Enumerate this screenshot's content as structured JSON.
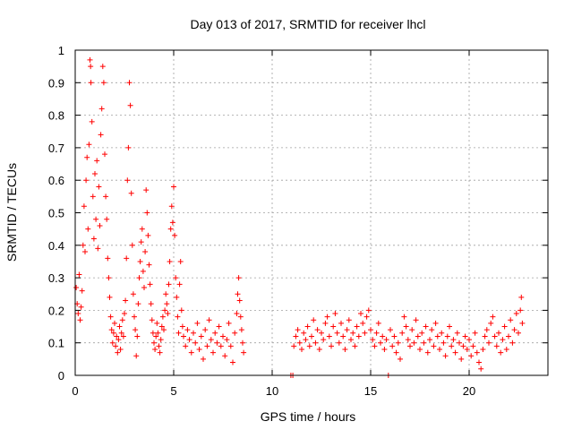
{
  "chart_data": {
    "type": "scatter",
    "title": "Day 013 of 2017, SRMTID for receiver lhcl",
    "xlabel": "GPS time / hours",
    "ylabel": "SRMTID / TECUs",
    "xlim": [
      0,
      24
    ],
    "ylim": [
      0,
      1
    ],
    "xticks": [
      0,
      5,
      10,
      15,
      20
    ],
    "xtick_labels": [
      "0",
      "5",
      "10",
      "15",
      "20"
    ],
    "yticks": [
      0,
      0.1,
      0.2,
      0.3,
      0.4,
      0.5,
      0.6,
      0.7,
      0.8,
      0.9,
      1
    ],
    "ytick_labels": [
      "0",
      "0.1",
      "0.2",
      "0.3",
      "0.4",
      "0.5",
      "0.6",
      "0.7",
      "0.8",
      "0.9",
      "1"
    ],
    "grid": true,
    "marker": "+",
    "color": "#ff0000",
    "series": [
      {
        "name": "SRMTID",
        "points": [
          [
            0.05,
            0.27
          ],
          [
            0.1,
            0.22
          ],
          [
            0.15,
            0.19
          ],
          [
            0.2,
            0.31
          ],
          [
            0.25,
            0.17
          ],
          [
            0.3,
            0.21
          ],
          [
            0.35,
            0.26
          ],
          [
            0.4,
            0.4
          ],
          [
            0.45,
            0.52
          ],
          [
            0.5,
            0.38
          ],
          [
            0.55,
            0.6
          ],
          [
            0.6,
            0.67
          ],
          [
            0.65,
            0.45
          ],
          [
            0.7,
            0.71
          ],
          [
            0.75,
            0.97
          ],
          [
            0.78,
            0.95
          ],
          [
            0.8,
            0.9
          ],
          [
            0.85,
            0.78
          ],
          [
            0.9,
            0.55
          ],
          [
            0.95,
            0.42
          ],
          [
            1.0,
            0.62
          ],
          [
            1.05,
            0.48
          ],
          [
            1.1,
            0.66
          ],
          [
            1.15,
            0.39
          ],
          [
            1.2,
            0.58
          ],
          [
            1.25,
            0.46
          ],
          [
            1.3,
            0.74
          ],
          [
            1.35,
            0.82
          ],
          [
            1.4,
            0.95
          ],
          [
            1.45,
            0.9
          ],
          [
            1.5,
            0.68
          ],
          [
            1.55,
            0.55
          ],
          [
            1.6,
            0.48
          ],
          [
            1.65,
            0.36
          ],
          [
            1.7,
            0.3
          ],
          [
            1.75,
            0.24
          ],
          [
            1.8,
            0.18
          ],
          [
            1.85,
            0.14
          ],
          [
            1.9,
            0.1
          ],
          [
            1.95,
            0.13
          ],
          [
            2.0,
            0.16
          ],
          [
            2.05,
            0.09
          ],
          [
            2.1,
            0.12
          ],
          [
            2.15,
            0.07
          ],
          [
            2.2,
            0.11
          ],
          [
            2.25,
            0.15
          ],
          [
            2.3,
            0.08
          ],
          [
            2.35,
            0.13
          ],
          [
            2.4,
            0.17
          ],
          [
            2.45,
            0.12
          ],
          [
            2.5,
            0.19
          ],
          [
            2.55,
            0.23
          ],
          [
            2.6,
            0.36
          ],
          [
            2.65,
            0.6
          ],
          [
            2.7,
            0.7
          ],
          [
            2.75,
            0.9
          ],
          [
            2.8,
            0.83
          ],
          [
            2.85,
            0.56
          ],
          [
            2.9,
            0.4
          ],
          [
            2.95,
            0.25
          ],
          [
            3.0,
            0.18
          ],
          [
            3.05,
            0.14
          ],
          [
            3.1,
            0.06
          ],
          [
            3.15,
            0.12
          ],
          [
            3.2,
            0.22
          ],
          [
            3.25,
            0.3
          ],
          [
            3.3,
            0.35
          ],
          [
            3.35,
            0.41
          ],
          [
            3.4,
            0.45
          ],
          [
            3.45,
            0.32
          ],
          [
            3.5,
            0.27
          ],
          [
            3.55,
            0.38
          ],
          [
            3.6,
            0.57
          ],
          [
            3.65,
            0.5
          ],
          [
            3.7,
            0.43
          ],
          [
            3.75,
            0.34
          ],
          [
            3.8,
            0.28
          ],
          [
            3.85,
            0.22
          ],
          [
            3.9,
            0.17
          ],
          [
            3.95,
            0.13
          ],
          [
            4.0,
            0.1
          ],
          [
            4.05,
            0.08
          ],
          [
            4.1,
            0.12
          ],
          [
            4.15,
            0.16
          ],
          [
            4.2,
            0.13
          ],
          [
            4.25,
            0.09
          ],
          [
            4.3,
            0.07
          ],
          [
            4.35,
            0.11
          ],
          [
            4.4,
            0.15
          ],
          [
            4.45,
            0.18
          ],
          [
            4.5,
            0.14
          ],
          [
            4.55,
            0.2
          ],
          [
            4.6,
            0.25
          ],
          [
            4.65,
            0.22
          ],
          [
            4.7,
            0.19
          ],
          [
            4.75,
            0.28
          ],
          [
            4.8,
            0.35
          ],
          [
            4.85,
            0.45
          ],
          [
            4.9,
            0.52
          ],
          [
            4.95,
            0.47
          ],
          [
            5.0,
            0.58
          ],
          [
            5.05,
            0.43
          ],
          [
            5.1,
            0.3
          ],
          [
            5.15,
            0.24
          ],
          [
            5.2,
            0.18
          ],
          [
            5.25,
            0.13
          ],
          [
            5.3,
            0.28
          ],
          [
            5.35,
            0.35
          ],
          [
            5.4,
            0.2
          ],
          [
            5.45,
            0.15
          ],
          [
            5.5,
            0.12
          ],
          [
            5.6,
            0.09
          ],
          [
            5.7,
            0.14
          ],
          [
            5.8,
            0.11
          ],
          [
            5.9,
            0.07
          ],
          [
            6.0,
            0.13
          ],
          [
            6.1,
            0.1
          ],
          [
            6.2,
            0.16
          ],
          [
            6.3,
            0.08
          ],
          [
            6.4,
            0.12
          ],
          [
            6.5,
            0.05
          ],
          [
            6.6,
            0.14
          ],
          [
            6.7,
            0.09
          ],
          [
            6.8,
            0.17
          ],
          [
            6.9,
            0.11
          ],
          [
            7.0,
            0.07
          ],
          [
            7.1,
            0.13
          ],
          [
            7.2,
            0.1
          ],
          [
            7.3,
            0.15
          ],
          [
            7.4,
            0.09
          ],
          [
            7.5,
            0.12
          ],
          [
            7.6,
            0.06
          ],
          [
            7.7,
            0.11
          ],
          [
            7.8,
            0.16
          ],
          [
            7.9,
            0.09
          ],
          [
            8.0,
            0.04
          ],
          [
            8.1,
            0.13
          ],
          [
            8.2,
            0.19
          ],
          [
            8.25,
            0.25
          ],
          [
            8.3,
            0.3
          ],
          [
            8.35,
            0.23
          ],
          [
            8.4,
            0.18
          ],
          [
            8.45,
            0.14
          ],
          [
            8.5,
            0.1
          ],
          [
            8.55,
            0.07
          ],
          [
            10.95,
            0.0
          ],
          [
            11.05,
            0.0
          ],
          [
            11.1,
            0.09
          ],
          [
            11.2,
            0.12
          ],
          [
            11.3,
            0.14
          ],
          [
            11.4,
            0.1
          ],
          [
            11.5,
            0.08
          ],
          [
            11.6,
            0.13
          ],
          [
            11.7,
            0.11
          ],
          [
            11.8,
            0.15
          ],
          [
            11.9,
            0.09
          ],
          [
            12.0,
            0.12
          ],
          [
            12.1,
            0.17
          ],
          [
            12.2,
            0.1
          ],
          [
            12.3,
            0.14
          ],
          [
            12.4,
            0.08
          ],
          [
            12.5,
            0.13
          ],
          [
            12.6,
            0.11
          ],
          [
            12.7,
            0.16
          ],
          [
            12.8,
            0.18
          ],
          [
            12.9,
            0.12
          ],
          [
            13.0,
            0.09
          ],
          [
            13.1,
            0.15
          ],
          [
            13.2,
            0.19
          ],
          [
            13.3,
            0.13
          ],
          [
            13.4,
            0.1
          ],
          [
            13.5,
            0.16
          ],
          [
            13.6,
            0.12
          ],
          [
            13.7,
            0.08
          ],
          [
            13.8,
            0.14
          ],
          [
            13.9,
            0.17
          ],
          [
            14.0,
            0.11
          ],
          [
            14.1,
            0.13
          ],
          [
            14.2,
            0.09
          ],
          [
            14.3,
            0.15
          ],
          [
            14.4,
            0.12
          ],
          [
            14.5,
            0.19
          ],
          [
            14.6,
            0.16
          ],
          [
            14.7,
            0.13
          ],
          [
            14.8,
            0.18
          ],
          [
            14.9,
            0.2
          ],
          [
            15.0,
            0.14
          ],
          [
            15.1,
            0.11
          ],
          [
            15.2,
            0.09
          ],
          [
            15.3,
            0.13
          ],
          [
            15.4,
            0.16
          ],
          [
            15.5,
            0.1
          ],
          [
            15.6,
            0.12
          ],
          [
            15.7,
            0.08
          ],
          [
            15.8,
            0.11
          ],
          [
            15.9,
            0.0
          ],
          [
            16.0,
            0.14
          ],
          [
            16.1,
            0.09
          ],
          [
            16.2,
            0.12
          ],
          [
            16.3,
            0.07
          ],
          [
            16.4,
            0.1
          ],
          [
            16.5,
            0.05
          ],
          [
            16.6,
            0.13
          ],
          [
            16.7,
            0.18
          ],
          [
            16.8,
            0.15
          ],
          [
            16.9,
            0.11
          ],
          [
            17.0,
            0.09
          ],
          [
            17.1,
            0.14
          ],
          [
            17.2,
            0.1
          ],
          [
            17.3,
            0.17
          ],
          [
            17.4,
            0.12
          ],
          [
            17.5,
            0.08
          ],
          [
            17.6,
            0.13
          ],
          [
            17.7,
            0.1
          ],
          [
            17.8,
            0.15
          ],
          [
            17.9,
            0.07
          ],
          [
            18.0,
            0.11
          ],
          [
            18.1,
            0.14
          ],
          [
            18.2,
            0.09
          ],
          [
            18.3,
            0.16
          ],
          [
            18.4,
            0.12
          ],
          [
            18.5,
            0.08
          ],
          [
            18.6,
            0.13
          ],
          [
            18.7,
            0.1
          ],
          [
            18.8,
            0.06
          ],
          [
            18.9,
            0.12
          ],
          [
            19.0,
            0.15
          ],
          [
            19.1,
            0.09
          ],
          [
            19.2,
            0.11
          ],
          [
            19.3,
            0.07
          ],
          [
            19.4,
            0.13
          ],
          [
            19.5,
            0.1
          ],
          [
            19.6,
            0.05
          ],
          [
            19.7,
            0.09
          ],
          [
            19.8,
            0.12
          ],
          [
            19.9,
            0.08
          ],
          [
            20.0,
            0.11
          ],
          [
            20.1,
            0.06
          ],
          [
            20.2,
            0.09
          ],
          [
            20.3,
            0.13
          ],
          [
            20.4,
            0.07
          ],
          [
            20.5,
            0.04
          ],
          [
            20.6,
            0.02
          ],
          [
            20.7,
            0.08
          ],
          [
            20.8,
            0.12
          ],
          [
            20.9,
            0.14
          ],
          [
            21.0,
            0.1
          ],
          [
            21.1,
            0.16
          ],
          [
            21.2,
            0.18
          ],
          [
            21.3,
            0.12
          ],
          [
            21.4,
            0.09
          ],
          [
            21.5,
            0.13
          ],
          [
            21.6,
            0.07
          ],
          [
            21.7,
            0.11
          ],
          [
            21.8,
            0.15
          ],
          [
            21.9,
            0.08
          ],
          [
            22.0,
            0.12
          ],
          [
            22.1,
            0.17
          ],
          [
            22.2,
            0.1
          ],
          [
            22.3,
            0.14
          ],
          [
            22.4,
            0.19
          ],
          [
            22.5,
            0.13
          ],
          [
            22.6,
            0.2
          ],
          [
            22.65,
            0.24
          ],
          [
            22.7,
            0.16
          ]
        ]
      }
    ]
  }
}
